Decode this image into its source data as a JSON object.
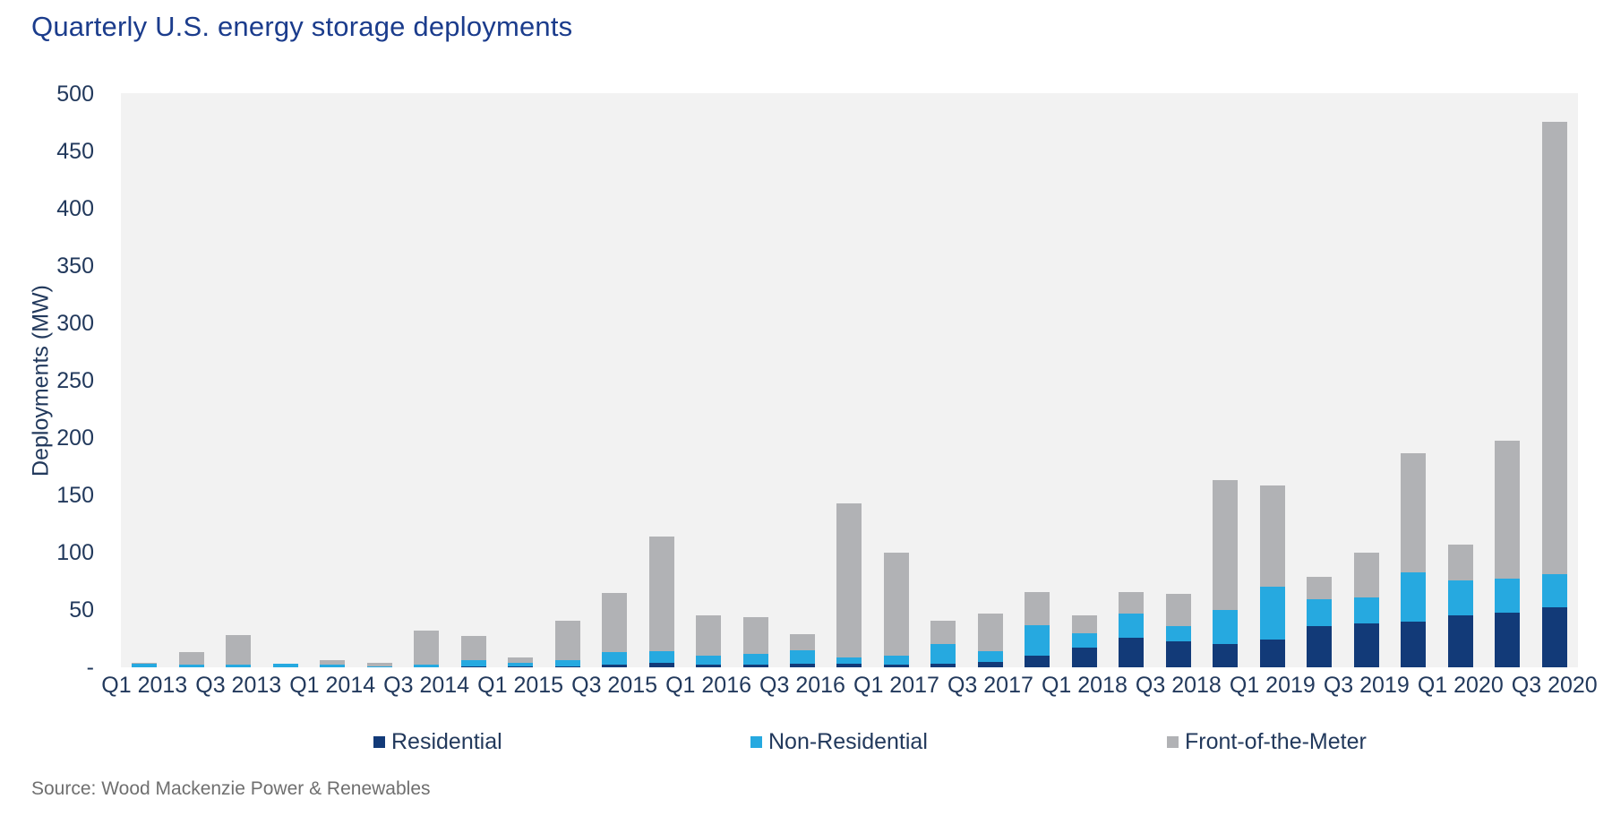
{
  "title": "Quarterly U.S. energy storage deployments",
  "source_note": "Source: Wood Mackenzie Power & Renewables",
  "colors": {
    "residential": "#123a78",
    "non_residential": "#26a9e0",
    "front_of_meter": "#b1b2b5",
    "plot_background": "#f2f2f2",
    "title_text": "#1b3c8c",
    "axis_text": "#22395c",
    "source_text": "#6f6f6f"
  },
  "legend": [
    {
      "label": "Residential",
      "color": "#123a78"
    },
    {
      "label": "Non-Residential",
      "color": "#26a9e0"
    },
    {
      "label": "Front-of-the-Meter",
      "color": "#b1b2b5"
    }
  ],
  "chart_data": {
    "type": "bar",
    "stacked": true,
    "title": "Quarterly U.S. energy storage deployments",
    "xlabel": "",
    "ylabel": "Deployments (MW)",
    "ylim": [
      0,
      500
    ],
    "ytick_step": 50,
    "ytick_labels": [
      "-",
      "50",
      "100",
      "150",
      "200",
      "250",
      "300",
      "350",
      "400",
      "450",
      "500"
    ],
    "grid": false,
    "legend_position": "bottom",
    "categories": [
      "Q1 2013",
      "Q2 2013",
      "Q3 2013",
      "Q4 2013",
      "Q1 2014",
      "Q2 2014",
      "Q3 2014",
      "Q4 2014",
      "Q1 2015",
      "Q2 2015",
      "Q3 2015",
      "Q4 2015",
      "Q1 2016",
      "Q2 2016",
      "Q3 2016",
      "Q4 2016",
      "Q1 2017",
      "Q2 2017",
      "Q3 2017",
      "Q4 2017",
      "Q1 2018",
      "Q2 2018",
      "Q3 2018",
      "Q4 2018",
      "Q1 2019",
      "Q2 2019",
      "Q3 2019",
      "Q4 2019",
      "Q1 2020",
      "Q2 2020",
      "Q3 2020"
    ],
    "x_tick_labels_shown": [
      "Q1 2013",
      "Q3 2013",
      "Q1 2014",
      "Q3 2014",
      "Q1 2015",
      "Q3 2015",
      "Q1 2016",
      "Q3 2016",
      "Q1 2017",
      "Q3 2017",
      "Q1 2018",
      "Q3 2018",
      "Q1 2019",
      "Q3 2019",
      "Q1 2020",
      "Q3 2020"
    ],
    "series": [
      {
        "name": "Residential",
        "color": "#123a78",
        "values": [
          0,
          0,
          0,
          0,
          0,
          0,
          0,
          1,
          1,
          1,
          2,
          4,
          2,
          2,
          3,
          3,
          2,
          3,
          5,
          10,
          17,
          26,
          23,
          20,
          24,
          36,
          38,
          40,
          45,
          48,
          52
        ]
      },
      {
        "name": "Non-Residential",
        "color": "#26a9e0",
        "values": [
          3,
          2,
          2,
          3,
          2,
          1,
          2,
          5,
          3,
          5,
          11,
          10,
          8,
          10,
          12,
          6,
          8,
          17,
          9,
          27,
          13,
          21,
          13,
          30,
          46,
          23,
          23,
          43,
          31,
          29,
          29
        ]
      },
      {
        "name": "Front-of-the-Meter",
        "color": "#b1b2b5",
        "values": [
          1,
          11,
          26,
          0,
          4,
          3,
          30,
          21,
          5,
          35,
          52,
          100,
          35,
          32,
          14,
          134,
          90,
          21,
          33,
          29,
          15,
          19,
          28,
          113,
          89,
          20,
          39,
          104,
          31,
          121,
          395
        ]
      }
    ],
    "totals": [
      4,
      13,
      28,
      3,
      6,
      4,
      32,
      27,
      9,
      41,
      65,
      114,
      45,
      44,
      29,
      143,
      100,
      41,
      47,
      66,
      45,
      66,
      64,
      163,
      159,
      79,
      100,
      187,
      107,
      198,
      476
    ]
  }
}
